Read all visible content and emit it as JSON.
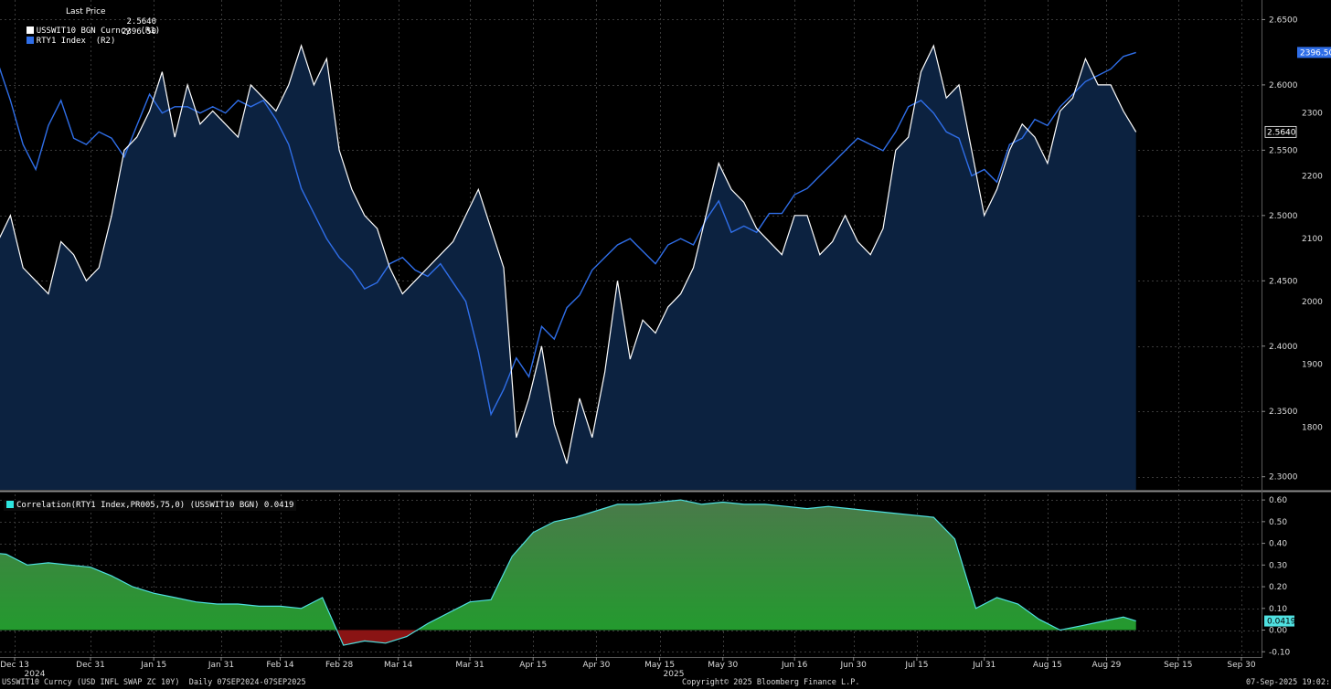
{
  "legend": {
    "header": "Last Price",
    "series1_label": "USSWIT10 BGN Curncy  (R1)",
    "series1_value": "2.5640",
    "series2_label": "RTY1 Index  (R2)",
    "series2_value": "2396.50"
  },
  "corr_legend": "Correlation(RTY1 Index,PR005,75,0) (USSWIT10 BGN) 0.0419",
  "footer": {
    "left": "USSWIT10 Curncy (USD INFL SWAP ZC 10Y)  Daily 07SEP2024-07SEP2025",
    "center": "Copyright© 2025 Bloomberg Finance L.P.",
    "right": "07-Sep-2025 19:02:19"
  },
  "colors": {
    "background": "#000000",
    "area_fill": "#0c2240",
    "swap_line": "#ffffff",
    "rty_line": "#2f6ee8",
    "corr_pos": "#1f9e2b",
    "corr_neg": "#8a1414",
    "corr_line": "#4fe0e0",
    "grid": "#3a3a3a"
  },
  "chart_data": [
    {
      "type": "line",
      "x_ticks": [
        "Dec 13",
        "Dec 31",
        "Jan 15",
        "Jan 31",
        "Feb 14",
        "Feb 28",
        "Mar 14",
        "Mar 31",
        "Apr 15",
        "Apr 30",
        "May 15",
        "May 30",
        "Jun 16",
        "Jun 30",
        "Jul 15",
        "Jul 31",
        "Aug 15",
        "Aug 29",
        "Sep 15",
        "Sep 30"
      ],
      "year_labels": [
        "2024",
        "2025"
      ],
      "series": [
        {
          "name": "USSWIT10 BGN Curncy (R1)",
          "axis": "R1",
          "last": 2.564,
          "dates": [
            "Dec 6",
            "Dec 9",
            "Dec 12",
            "Dec 15",
            "Dec 18",
            "Dec 21",
            "Dec 24",
            "Dec 27",
            "Dec 30",
            "Jan 2",
            "Jan 5",
            "Jan 8",
            "Jan 11",
            "Jan 14",
            "Jan 17",
            "Jan 20",
            "Jan 23",
            "Jan 26",
            "Jan 29",
            "Feb 1",
            "Feb 4",
            "Feb 7",
            "Feb 10",
            "Feb 13",
            "Feb 16",
            "Feb 19",
            "Feb 22",
            "Feb 25",
            "Feb 28",
            "Mar 3",
            "Mar 6",
            "Mar 9",
            "Mar 12",
            "Mar 15",
            "Mar 18",
            "Mar 21",
            "Mar 24",
            "Mar 27",
            "Mar 30",
            "Apr 2",
            "Apr 5",
            "Apr 8",
            "Apr 11",
            "Apr 14",
            "Apr 17",
            "Apr 20",
            "Apr 23",
            "Apr 26",
            "Apr 29",
            "May 2",
            "May 5",
            "May 8",
            "May 11",
            "May 14",
            "May 17",
            "May 20",
            "May 23",
            "May 26",
            "May 29",
            "Jun 1",
            "Jun 4",
            "Jun 7",
            "Jun 10",
            "Jun 13",
            "Jun 16",
            "Jun 19",
            "Jun 22",
            "Jun 25",
            "Jun 28",
            "Jul 1",
            "Jul 4",
            "Jul 7",
            "Jul 10",
            "Jul 13",
            "Jul 16",
            "Jul 19",
            "Jul 22",
            "Jul 25",
            "Jul 28",
            "Jul 31",
            "Aug 3",
            "Aug 6",
            "Aug 9",
            "Aug 12",
            "Aug 15",
            "Aug 18",
            "Aug 21",
            "Aug 24",
            "Aug 27",
            "Aug 30",
            "Sep 2",
            "Sep 5"
          ],
          "values": [
            2.49,
            2.48,
            2.5,
            2.46,
            2.45,
            2.44,
            2.48,
            2.47,
            2.45,
            2.46,
            2.5,
            2.55,
            2.56,
            2.58,
            2.61,
            2.56,
            2.6,
            2.57,
            2.58,
            2.57,
            2.56,
            2.6,
            2.59,
            2.58,
            2.6,
            2.63,
            2.6,
            2.62,
            2.55,
            2.52,
            2.5,
            2.49,
            2.46,
            2.44,
            2.45,
            2.46,
            2.47,
            2.48,
            2.5,
            2.52,
            2.49,
            2.46,
            2.33,
            2.36,
            2.4,
            2.34,
            2.31,
            2.36,
            2.33,
            2.38,
            2.45,
            2.39,
            2.42,
            2.41,
            2.43,
            2.44,
            2.46,
            2.5,
            2.54,
            2.52,
            2.51,
            2.49,
            2.48,
            2.47,
            2.5,
            2.5,
            2.47,
            2.48,
            2.5,
            2.48,
            2.47,
            2.49,
            2.55,
            2.56,
            2.61,
            2.63,
            2.59,
            2.6,
            2.55,
            2.5,
            2.52,
            2.55,
            2.57,
            2.56,
            2.54,
            2.58,
            2.59,
            2.62,
            2.6,
            2.6,
            2.58,
            2.564
          ]
        },
        {
          "name": "RTY1 Index (R2)",
          "axis": "R2",
          "last": 2396.5,
          "dates": [
            "Dec 6",
            "Dec 9",
            "Dec 12",
            "Dec 15",
            "Dec 18",
            "Dec 21",
            "Dec 24",
            "Dec 27",
            "Dec 30",
            "Jan 2",
            "Jan 5",
            "Jan 8",
            "Jan 11",
            "Jan 14",
            "Jan 17",
            "Jan 20",
            "Jan 23",
            "Jan 26",
            "Jan 29",
            "Feb 1",
            "Feb 4",
            "Feb 7",
            "Feb 10",
            "Feb 13",
            "Feb 16",
            "Feb 19",
            "Feb 22",
            "Feb 25",
            "Feb 28",
            "Mar 3",
            "Mar 6",
            "Mar 9",
            "Mar 12",
            "Mar 15",
            "Mar 18",
            "Mar 21",
            "Mar 24",
            "Mar 27",
            "Mar 30",
            "Apr 2",
            "Apr 5",
            "Apr 8",
            "Apr 11",
            "Apr 14",
            "Apr 17",
            "Apr 20",
            "Apr 23",
            "Apr 26",
            "Apr 29",
            "May 2",
            "May 5",
            "May 8",
            "May 11",
            "May 14",
            "May 17",
            "May 20",
            "May 23",
            "May 26",
            "May 29",
            "Jun 1",
            "Jun 4",
            "Jun 7",
            "Jun 10",
            "Jun 13",
            "Jun 16",
            "Jun 19",
            "Jun 22",
            "Jun 25",
            "Jun 28",
            "Jul 1",
            "Jul 4",
            "Jul 7",
            "Jul 10",
            "Jul 13",
            "Jul 16",
            "Jul 19",
            "Jul 22",
            "Jul 25",
            "Jul 28",
            "Jul 31",
            "Aug 3",
            "Aug 6",
            "Aug 9",
            "Aug 12",
            "Aug 15",
            "Aug 18",
            "Aug 21",
            "Aug 24",
            "Aug 27",
            "Aug 30",
            "Sep 2",
            "Sep 5"
          ],
          "values": [
            2410,
            2380,
            2320,
            2250,
            2210,
            2280,
            2320,
            2260,
            2250,
            2270,
            2260,
            2230,
            2280,
            2330,
            2300,
            2310,
            2310,
            2300,
            2310,
            2300,
            2320,
            2310,
            2320,
            2290,
            2250,
            2180,
            2140,
            2100,
            2070,
            2050,
            2020,
            2030,
            2060,
            2070,
            2050,
            2040,
            2060,
            2030,
            2000,
            1920,
            1820,
            1860,
            1910,
            1880,
            1960,
            1940,
            1990,
            2010,
            2050,
            2070,
            2090,
            2100,
            2080,
            2060,
            2090,
            2100,
            2090,
            2130,
            2160,
            2110,
            2120,
            2110,
            2140,
            2140,
            2170,
            2180,
            2200,
            2220,
            2240,
            2260,
            2250,
            2240,
            2270,
            2310,
            2320,
            2300,
            2270,
            2260,
            2200,
            2210,
            2190,
            2250,
            2260,
            2290,
            2280,
            2310,
            2330,
            2350,
            2360,
            2370,
            2390,
            2396.5
          ]
        }
      ],
      "r1_axis": {
        "ticks": [
          2.3,
          2.35,
          2.4,
          2.45,
          2.5,
          2.55,
          2.6,
          2.65
        ],
        "range": [
          2.29,
          2.665
        ]
      },
      "r2_axis": {
        "ticks": [
          1800,
          1900,
          2000,
          2100,
          2200,
          2300
        ],
        "range": [
          1700,
          2480
        ]
      },
      "tick_labels_r1": [
        "2.3000",
        "2.3500",
        "2.4000",
        "2.4500",
        "2.5000",
        "2.5500",
        "2.6000",
        "2.6500"
      ],
      "tick_labels_r2": [
        "1800",
        "1900",
        "2000",
        "2100",
        "2200",
        "2300"
      ],
      "last_labels": {
        "r1": "2.5640",
        "r2": "2396.50"
      },
      "grid": true
    },
    {
      "type": "area",
      "series": [
        {
          "name": "Correlation(RTY1 Index,PR005,75,0) (USSWIT10 BGN)",
          "last": 0.0419,
          "dates": [
            "Dec 6",
            "Dec 11",
            "Dec 16",
            "Dec 21",
            "Dec 26",
            "Dec 31",
            "Jan 5",
            "Jan 10",
            "Jan 15",
            "Jan 20",
            "Jan 25",
            "Jan 30",
            "Feb 4",
            "Feb 9",
            "Feb 14",
            "Feb 19",
            "Feb 24",
            "Mar 1",
            "Mar 6",
            "Mar 11",
            "Mar 16",
            "Mar 21",
            "Mar 26",
            "Mar 31",
            "Apr 5",
            "Apr 10",
            "Apr 15",
            "Apr 20",
            "Apr 25",
            "Apr 30",
            "May 5",
            "May 10",
            "May 15",
            "May 20",
            "May 25",
            "May 30",
            "Jun 4",
            "Jun 9",
            "Jun 14",
            "Jun 19",
            "Jun 24",
            "Jun 29",
            "Jul 4",
            "Jul 9",
            "Jul 14",
            "Jul 19",
            "Jul 24",
            "Jul 29",
            "Aug 3",
            "Aug 8",
            "Aug 13",
            "Aug 18",
            "Aug 23",
            "Aug 28",
            "Sep 2",
            "Sep 5"
          ],
          "values": [
            0.36,
            0.35,
            0.3,
            0.31,
            0.3,
            0.29,
            0.25,
            0.2,
            0.17,
            0.15,
            0.13,
            0.12,
            0.12,
            0.11,
            0.11,
            0.1,
            0.15,
            -0.07,
            -0.05,
            -0.06,
            -0.03,
            0.03,
            0.08,
            0.13,
            0.14,
            0.34,
            0.45,
            0.5,
            0.52,
            0.55,
            0.58,
            0.58,
            0.59,
            0.6,
            0.58,
            0.59,
            0.58,
            0.58,
            0.57,
            0.56,
            0.57,
            0.56,
            0.55,
            0.54,
            0.53,
            0.52,
            0.42,
            0.1,
            0.15,
            0.12,
            0.05,
            0.0,
            0.02,
            0.04,
            0.06,
            0.0419
          ]
        }
      ],
      "y_ticks": [
        -0.1,
        0.0,
        0.1,
        0.2,
        0.3,
        0.4,
        0.5,
        0.6
      ],
      "tick_labels": [
        "-0.10",
        "0.00",
        "0.10",
        "0.20",
        "0.30",
        "0.40",
        "0.50",
        "0.60"
      ],
      "y_range": [
        -0.12,
        0.63
      ],
      "last_label": "0.0419",
      "grid": true
    }
  ]
}
